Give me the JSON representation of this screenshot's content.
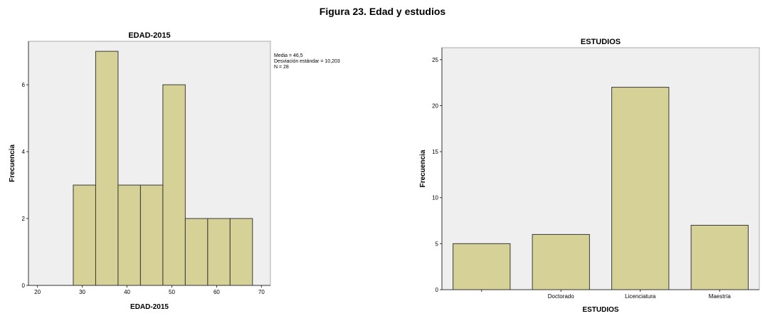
{
  "figure_title": "Figura 23. Edad y estudios",
  "chart_data": [
    {
      "type": "bar",
      "title": "EDAD-2015",
      "xlabel": "EDAD-2015",
      "ylabel": "Frecuencia",
      "bin_edges": [
        28,
        33,
        38,
        43,
        48,
        53,
        58,
        63,
        68
      ],
      "values": [
        3,
        7,
        3,
        3,
        6,
        2,
        2,
        2
      ],
      "xlim": [
        18,
        72
      ],
      "ylim": [
        0,
        7.3
      ],
      "xticks": [
        20,
        30,
        40,
        50,
        60,
        70
      ],
      "yticks": [
        0,
        2,
        4,
        6
      ],
      "stats": {
        "media": "Media = 46,5",
        "desviacion": "Desviación estándar = 10,203",
        "n": "N = 28"
      }
    },
    {
      "type": "bar",
      "title": "ESTUDIOS",
      "xlabel": "ESTUDIOS",
      "ylabel": "Frecuencia",
      "categories": [
        "",
        "Doctorado",
        "Licenciatura",
        "Maestría"
      ],
      "values": [
        5,
        6,
        22,
        7
      ],
      "ylim": [
        0,
        26.3
      ],
      "yticks": [
        0,
        5,
        10,
        15,
        20,
        25
      ]
    }
  ]
}
